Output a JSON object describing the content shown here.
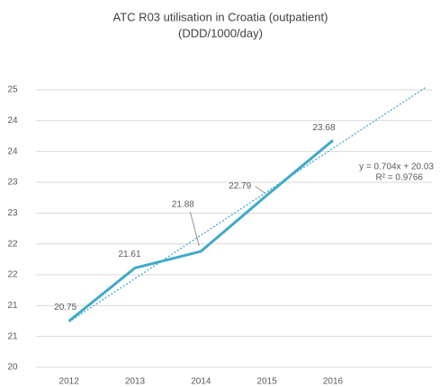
{
  "chart_data": {
    "type": "line",
    "title": "ATC R03 utilisation in Croatia (outpatient)",
    "subtitle": "(DDD/1000/day)",
    "categories": [
      "2012",
      "2013",
      "2014",
      "2015",
      "2016",
      null
    ],
    "series": [
      {
        "name": "R03",
        "color": "#41a9c9",
        "values": [
          20.75,
          21.61,
          21.88,
          22.79,
          23.68,
          null
        ]
      }
    ],
    "ylim": [
      20,
      24.5
    ],
    "yticks": [
      {
        "value": 20,
        "label": "20"
      },
      {
        "value": 20.5,
        "label": "21"
      },
      {
        "value": 21,
        "label": "21"
      },
      {
        "value": 21.5,
        "label": "22"
      },
      {
        "value": 22,
        "label": "22"
      },
      {
        "value": 22.5,
        "label": "23"
      },
      {
        "value": 23,
        "label": "23"
      },
      {
        "value": 23.5,
        "label": "24"
      },
      {
        "value": 24,
        "label": "24"
      },
      {
        "value": 24.5,
        "label": "25"
      }
    ],
    "grid": true,
    "trendline": {
      "slope": 0.704,
      "intercept": 20.03,
      "label": "y = 0.704x + 20.03",
      "r2_label": "R² = 0.9766"
    }
  }
}
